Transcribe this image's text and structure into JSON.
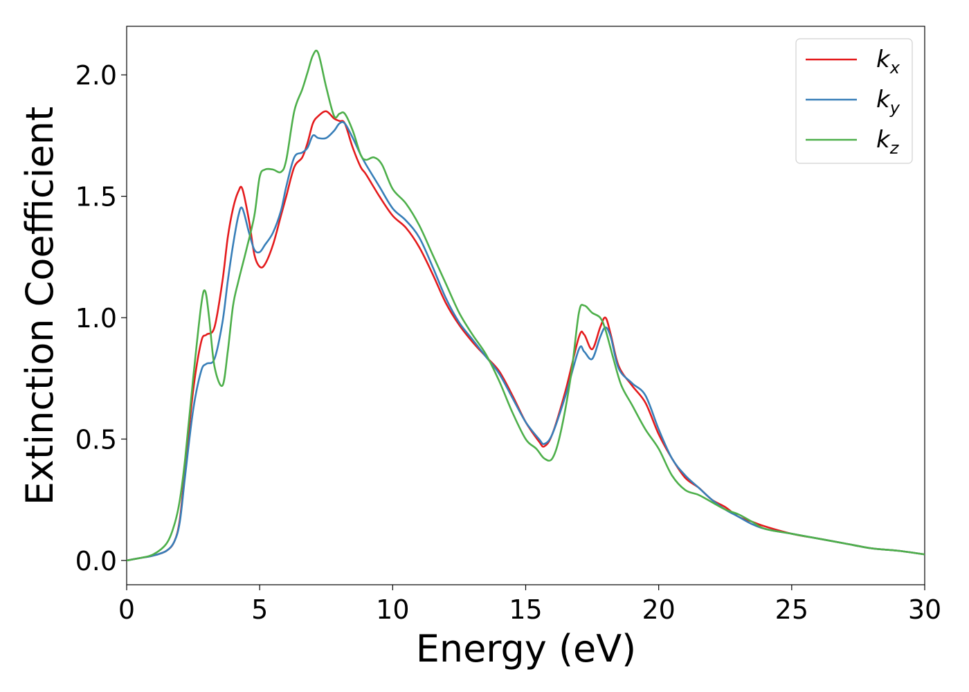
{
  "chart_data": {
    "type": "line",
    "xlabel": "Energy (eV)",
    "ylabel": "Extinction Coefficient",
    "xlim": [
      0,
      30
    ],
    "ylim": [
      -0.1,
      2.2
    ],
    "xticks": [
      0,
      5,
      10,
      15,
      20,
      25,
      30
    ],
    "xtick_labels": [
      "0",
      "5",
      "10",
      "15",
      "20",
      "25",
      "30"
    ],
    "yticks": [
      0.0,
      0.5,
      1.0,
      1.5,
      2.0
    ],
    "ytick_labels": [
      "0.0",
      "0.5",
      "1.0",
      "1.5",
      "2.0"
    ],
    "grid": false,
    "legend_position": "top-right",
    "series": [
      {
        "name": "k",
        "subscript": "x",
        "color": "#e41a1c",
        "x": [
          0,
          0.5,
          1,
          1.5,
          1.8,
          2,
          2.2,
          2.5,
          2.8,
          3,
          3.3,
          3.6,
          3.8,
          4,
          4.2,
          4.35,
          4.6,
          4.8,
          5,
          5.2,
          5.5,
          5.8,
          6,
          6.3,
          6.6,
          6.8,
          7,
          7.2,
          7.5,
          7.8,
          8,
          8.2,
          8.5,
          8.8,
          9,
          9.5,
          10,
          10.5,
          11,
          11.5,
          12,
          12.5,
          13,
          13.5,
          14,
          14.5,
          15,
          15.5,
          15.7,
          16,
          16.5,
          17,
          17.2,
          17.5,
          17.8,
          18,
          18.2,
          18.5,
          19,
          19.5,
          20,
          20.5,
          21,
          21.5,
          22,
          22.5,
          23,
          23.5,
          24,
          25,
          26,
          27,
          28,
          29,
          30
        ],
        "values": [
          0,
          0.01,
          0.02,
          0.04,
          0.08,
          0.17,
          0.38,
          0.7,
          0.9,
          0.93,
          0.96,
          1.15,
          1.33,
          1.45,
          1.52,
          1.53,
          1.4,
          1.26,
          1.21,
          1.22,
          1.3,
          1.42,
          1.5,
          1.62,
          1.66,
          1.72,
          1.8,
          1.83,
          1.85,
          1.82,
          1.81,
          1.8,
          1.7,
          1.62,
          1.59,
          1.5,
          1.42,
          1.37,
          1.29,
          1.18,
          1.06,
          0.97,
          0.9,
          0.84,
          0.78,
          0.68,
          0.57,
          0.49,
          0.47,
          0.52,
          0.7,
          0.92,
          0.93,
          0.87,
          0.96,
          1.0,
          0.93,
          0.8,
          0.72,
          0.65,
          0.52,
          0.42,
          0.34,
          0.3,
          0.25,
          0.22,
          0.18,
          0.16,
          0.14,
          0.11,
          0.09,
          0.07,
          0.05,
          0.04,
          0.025
        ]
      },
      {
        "name": "k",
        "subscript": "y",
        "color": "#377eb8",
        "x": [
          0,
          0.5,
          1,
          1.5,
          1.8,
          2,
          2.2,
          2.5,
          2.8,
          3,
          3.3,
          3.6,
          3.8,
          4,
          4.2,
          4.35,
          4.6,
          4.8,
          5,
          5.2,
          5.5,
          5.8,
          6,
          6.3,
          6.6,
          6.8,
          7,
          7.2,
          7.5,
          7.8,
          8,
          8.2,
          8.5,
          8.8,
          9,
          9.5,
          10,
          10.5,
          11,
          11.5,
          12,
          12.5,
          13,
          13.5,
          14,
          14.5,
          15,
          15.5,
          15.7,
          16,
          16.5,
          17,
          17.2,
          17.5,
          17.8,
          18,
          18.2,
          18.5,
          19,
          19.5,
          20,
          20.5,
          21,
          21.5,
          22,
          22.5,
          23,
          23.5,
          24,
          25,
          26,
          27,
          28,
          29,
          30
        ],
        "values": [
          0,
          0.01,
          0.02,
          0.04,
          0.08,
          0.16,
          0.35,
          0.62,
          0.78,
          0.81,
          0.83,
          0.98,
          1.15,
          1.3,
          1.42,
          1.45,
          1.35,
          1.28,
          1.27,
          1.3,
          1.35,
          1.44,
          1.54,
          1.66,
          1.68,
          1.7,
          1.75,
          1.74,
          1.74,
          1.77,
          1.8,
          1.8,
          1.74,
          1.67,
          1.63,
          1.54,
          1.45,
          1.4,
          1.33,
          1.21,
          1.08,
          0.98,
          0.91,
          0.84,
          0.77,
          0.67,
          0.57,
          0.5,
          0.48,
          0.52,
          0.68,
          0.87,
          0.86,
          0.83,
          0.92,
          0.96,
          0.92,
          0.79,
          0.73,
          0.68,
          0.54,
          0.42,
          0.35,
          0.3,
          0.25,
          0.21,
          0.18,
          0.15,
          0.13,
          0.11,
          0.09,
          0.07,
          0.05,
          0.04,
          0.025
        ]
      },
      {
        "name": "k",
        "subscript": "z",
        "color": "#4daf4a",
        "x": [
          0,
          0.5,
          1,
          1.5,
          1.8,
          2,
          2.2,
          2.5,
          2.8,
          2.95,
          3.1,
          3.3,
          3.6,
          3.8,
          4,
          4.2,
          4.5,
          4.8,
          5,
          5.2,
          5.5,
          5.8,
          6,
          6.3,
          6.6,
          6.8,
          7,
          7.2,
          7.5,
          7.8,
          8,
          8.2,
          8.5,
          8.8,
          9,
          9.3,
          9.6,
          10,
          10.5,
          11,
          11.5,
          12,
          12.5,
          13,
          13.5,
          14,
          14.5,
          15,
          15.4,
          15.7,
          16,
          16.3,
          16.7,
          17,
          17.2,
          17.5,
          17.8,
          18,
          18.3,
          18.6,
          19,
          19.5,
          20,
          20.5,
          21,
          21.5,
          22,
          22.5,
          23,
          23.5,
          24,
          25,
          26,
          27,
          28,
          29,
          30
        ],
        "values": [
          0,
          0.01,
          0.025,
          0.07,
          0.15,
          0.25,
          0.42,
          0.75,
          1.05,
          1.11,
          1.0,
          0.8,
          0.72,
          0.86,
          1.05,
          1.15,
          1.28,
          1.42,
          1.58,
          1.61,
          1.61,
          1.6,
          1.65,
          1.85,
          1.94,
          2.01,
          2.08,
          2.09,
          1.95,
          1.83,
          1.84,
          1.84,
          1.77,
          1.67,
          1.65,
          1.66,
          1.63,
          1.53,
          1.47,
          1.38,
          1.26,
          1.14,
          1.02,
          0.93,
          0.85,
          0.74,
          0.61,
          0.5,
          0.46,
          0.42,
          0.42,
          0.52,
          0.76,
          1.02,
          1.05,
          1.02,
          1.0,
          0.95,
          0.83,
          0.72,
          0.64,
          0.54,
          0.46,
          0.35,
          0.29,
          0.27,
          0.24,
          0.21,
          0.19,
          0.16,
          0.13,
          0.11,
          0.09,
          0.07,
          0.05,
          0.04,
          0.025
        ]
      }
    ]
  }
}
